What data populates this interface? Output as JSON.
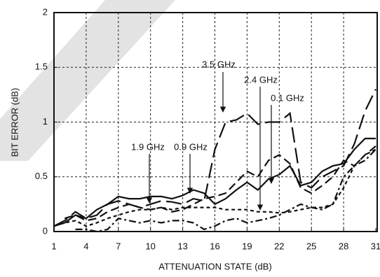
{
  "chart_data": {
    "type": "line",
    "x_label": "ATTENUATION STATE (dB)",
    "y_label": "BIT ERROR (dB)",
    "x": [
      1,
      2,
      3,
      4,
      5,
      6,
      7,
      8,
      9,
      10,
      11,
      12,
      13,
      14,
      15,
      16,
      17,
      18,
      19,
      20,
      21,
      22,
      23,
      24,
      25,
      26,
      27,
      28,
      29,
      30,
      31
    ],
    "xlim": [
      1,
      31
    ],
    "xticks": [
      1,
      4,
      7,
      10,
      13,
      16,
      19,
      22,
      25,
      28,
      31
    ],
    "ylim": [
      0,
      2
    ],
    "yticks": [
      0,
      0.5,
      1,
      1.5,
      2
    ],
    "grid": true,
    "series": [
      {
        "name": "0.9 GHz",
        "color": "#111111",
        "values": [
          0.05,
          0.08,
          0.15,
          0.12,
          0.2,
          0.25,
          0.32,
          0.3,
          0.3,
          0.32,
          0.32,
          0.3,
          0.33,
          0.38,
          0.35,
          0.25,
          0.3,
          0.38,
          0.45,
          0.38,
          0.48,
          0.52,
          0.6,
          0.42,
          0.45,
          0.55,
          0.6,
          0.62,
          0.75,
          0.85,
          0.85
        ]
      },
      {
        "name": "3.5 GHz",
        "color": "#111111",
        "values": [
          0.05,
          0.1,
          0.18,
          0.12,
          0.15,
          0.25,
          0.28,
          0.25,
          0.22,
          0.25,
          0.28,
          0.27,
          0.25,
          0.3,
          0.28,
          0.75,
          1.0,
          1.02,
          1.08,
          0.98,
          1.0,
          1.0,
          1.08,
          0.45,
          0.4,
          0.5,
          0.55,
          0.6,
          0.8,
          1.1,
          1.3
        ]
      },
      {
        "name": "0.1 GHz",
        "color": "#111111",
        "values": [
          null,
          0.12,
          0.15,
          0.1,
          0.12,
          0.18,
          0.22,
          0.25,
          0.22,
          0.2,
          0.22,
          0.18,
          0.2,
          0.25,
          0.3,
          0.32,
          0.35,
          0.45,
          0.55,
          0.5,
          0.65,
          0.7,
          0.62,
          0.4,
          0.35,
          0.42,
          0.5,
          0.65,
          0.6,
          0.7,
          0.78
        ]
      },
      {
        "name": "2.4 GHz",
        "color": "#111111",
        "values": [
          0.05,
          0.08,
          0.1,
          0.05,
          0.08,
          0.12,
          0.15,
          0.18,
          0.2,
          0.2,
          0.22,
          0.2,
          0.22,
          0.22,
          0.22,
          0.22,
          0.2,
          0.2,
          0.2,
          0.18,
          0.18,
          0.17,
          0.18,
          0.2,
          0.22,
          0.22,
          0.25,
          0.4,
          0.6,
          0.7,
          0.75
        ]
      },
      {
        "name": "1.9 GHz",
        "color": "#111111",
        "values": [
          null,
          null,
          0.02,
          0.02,
          0.0,
          0.02,
          0.12,
          0.1,
          0.08,
          0.1,
          0.08,
          0.1,
          0.1,
          0.08,
          0.02,
          0.05,
          0.1,
          0.12,
          0.08,
          0.1,
          0.12,
          0.15,
          0.2,
          0.25,
          0.22,
          0.2,
          0.25,
          0.5,
          0.6,
          0.65,
          0.75
        ]
      }
    ]
  }
}
